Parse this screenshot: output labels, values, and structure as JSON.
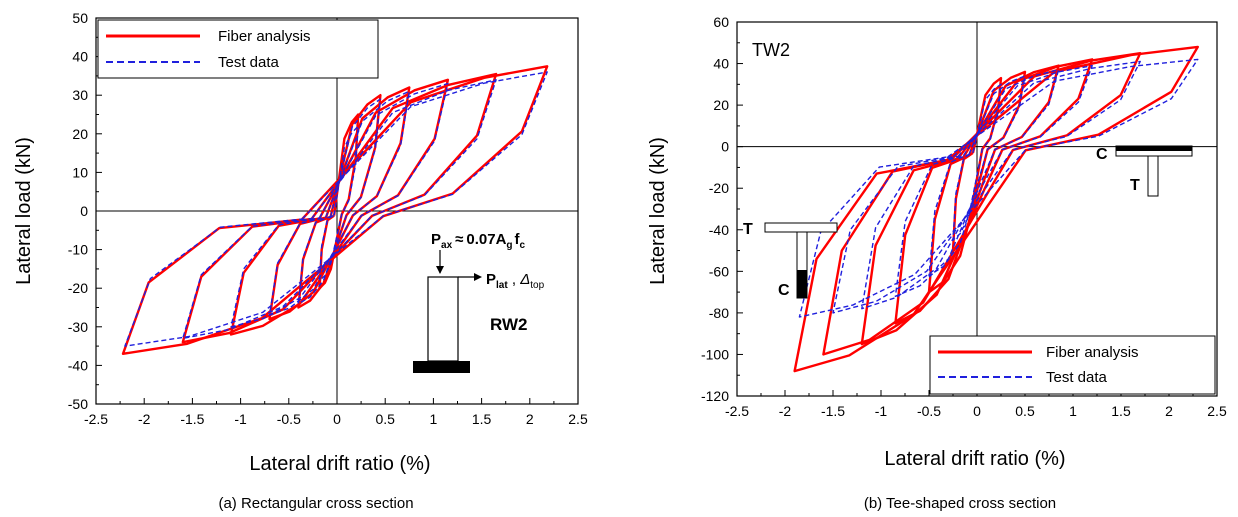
{
  "chart_data": [
    {
      "type": "line",
      "panel": "a",
      "caption": "(a) Rectangular cross section",
      "xlabel": "Lateral drift ratio (%)",
      "ylabel": "Lateral load (kN)",
      "xlim": [
        -2.5,
        2.5
      ],
      "ylim": [
        -50,
        50
      ],
      "xticks": [
        "-2.5",
        "-2",
        "-1.5",
        "-1",
        "-0.5",
        "0",
        "0.5",
        "1",
        "1.5",
        "2",
        "2.5"
      ],
      "yticks": [
        "-50",
        "-40",
        "-30",
        "-20",
        "-10",
        "0",
        "10",
        "20",
        "30",
        "40",
        "50"
      ],
      "grid": false,
      "legend_position": "top-left",
      "specimen_label": "RW2",
      "annotations": [
        "P",
        "ax",
        "≈",
        "0.07A",
        "g",
        "f",
        "c",
        "P",
        "lat",
        "Δ",
        "top"
      ],
      "series": [
        {
          "name": "Fiber analysis",
          "color": "#ff0000",
          "dash": "solid",
          "loops": [
            {
              "pos": [
                0.22,
                25
              ],
              "neg": [
                -0.18,
                -20
              ]
            },
            {
              "pos": [
                0.45,
                30
              ],
              "neg": [
                -0.4,
                -25
              ]
            },
            {
              "pos": [
                0.75,
                32
              ],
              "neg": [
                -0.7,
                -28
              ]
            },
            {
              "pos": [
                1.15,
                34
              ],
              "neg": [
                -1.1,
                -32
              ]
            },
            {
              "pos": [
                1.65,
                35.5
              ],
              "neg": [
                -1.6,
                -34
              ]
            },
            {
              "pos": [
                2.18,
                37.5
              ],
              "neg": [
                -2.22,
                -37
              ]
            }
          ]
        },
        {
          "name": "Test data",
          "color": "#2020dd",
          "dash": "dashed",
          "loops": [
            {
              "pos": [
                0.22,
                22
              ],
              "neg": [
                -0.18,
                -18
              ]
            },
            {
              "pos": [
                0.45,
                29
              ],
              "neg": [
                -0.4,
                -24
              ]
            },
            {
              "pos": [
                0.75,
                31
              ],
              "neg": [
                -0.7,
                -27
              ]
            },
            {
              "pos": [
                1.15,
                33
              ],
              "neg": [
                -1.1,
                -30
              ]
            },
            {
              "pos": [
                1.65,
                34
              ],
              "neg": [
                -1.6,
                -33
              ]
            },
            {
              "pos": [
                2.18,
                36
              ],
              "neg": [
                -2.2,
                -35
              ]
            }
          ]
        }
      ]
    },
    {
      "type": "line",
      "panel": "b",
      "caption": "(b) Tee-shaped cross section",
      "xlabel": "Lateral drift ratio (%)",
      "ylabel": "Lateral load (kN)",
      "xlim": [
        -2.5,
        2.5
      ],
      "ylim": [
        -120,
        60
      ],
      "xticks": [
        "-2.5",
        "-2",
        "-1.5",
        "-1",
        "-0.5",
        "0",
        "0.5",
        "1",
        "1.5",
        "2",
        "2.5"
      ],
      "yticks": [
        "-120",
        "-100",
        "-80",
        "-60",
        "-40",
        "-20",
        "0",
        "20",
        "40",
        "60"
      ],
      "grid": false,
      "legend_position": "bottom-right",
      "specimen_label": "TW2",
      "annotations": [
        "C",
        "T",
        "T",
        "C"
      ],
      "series": [
        {
          "name": "Fiber analysis",
          "color": "#ff0000",
          "dash": "solid",
          "loops": [
            {
              "pos": [
                0.25,
                33
              ],
              "neg": [
                -0.25,
                -50
              ]
            },
            {
              "pos": [
                0.5,
                36
              ],
              "neg": [
                -0.5,
                -70
              ]
            },
            {
              "pos": [
                0.85,
                39
              ],
              "neg": [
                -0.85,
                -85
              ]
            },
            {
              "pos": [
                1.2,
                42
              ],
              "neg": [
                -1.2,
                -95
              ]
            },
            {
              "pos": [
                1.7,
                45
              ],
              "neg": [
                -1.6,
                -100
              ]
            },
            {
              "pos": [
                2.3,
                48
              ],
              "neg": [
                -1.9,
                -108
              ]
            }
          ]
        },
        {
          "name": "Test data",
          "color": "#2020dd",
          "dash": "dashed",
          "loops": [
            {
              "pos": [
                0.25,
                30
              ],
              "neg": [
                -0.25,
                -45
              ]
            },
            {
              "pos": [
                0.5,
                34
              ],
              "neg": [
                -0.5,
                -62
              ]
            },
            {
              "pos": [
                0.85,
                37
              ],
              "neg": [
                -0.85,
                -72
              ]
            },
            {
              "pos": [
                1.2,
                39
              ],
              "neg": [
                -1.2,
                -78
              ]
            },
            {
              "pos": [
                1.7,
                41
              ],
              "neg": [
                -1.5,
                -80
              ]
            },
            {
              "pos": [
                2.3,
                42
              ],
              "neg": [
                -1.85,
                -82
              ]
            }
          ]
        }
      ]
    }
  ]
}
